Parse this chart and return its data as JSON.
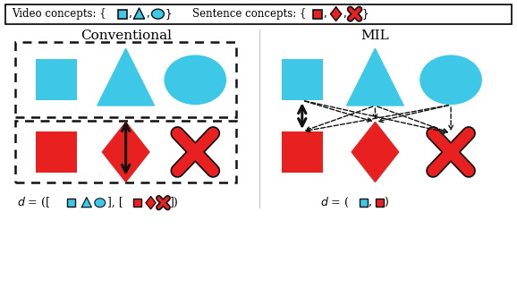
{
  "bg_color": "#ffffff",
  "cyan": "#3EC8E8",
  "red": "#E82020",
  "dark": "#111111",
  "conv_title": "Conventional",
  "mil_title": "MIL",
  "fig_width": 5.78,
  "fig_height": 3.22,
  "dpi": 100
}
